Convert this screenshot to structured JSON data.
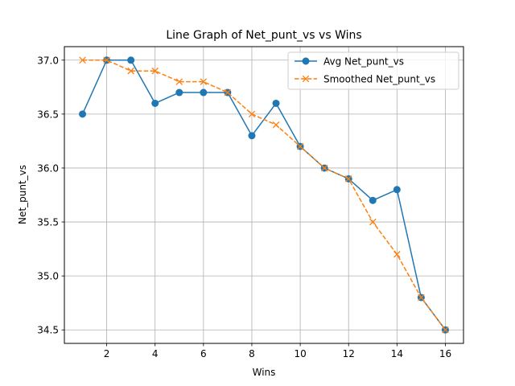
{
  "chart_data": {
    "type": "line",
    "title": "Line Graph of Net_punt_vs vs Wins",
    "xlabel": "Wins",
    "ylabel": "Net_punt_vs",
    "xlim": [
      0.25,
      16.75
    ],
    "ylim": [
      34.375,
      37.125
    ],
    "xticks": [
      2,
      4,
      6,
      8,
      10,
      12,
      14,
      16
    ],
    "yticks": [
      34.5,
      35.0,
      35.5,
      36.0,
      36.5,
      37.0
    ],
    "xtick_labels": [
      "2",
      "4",
      "6",
      "8",
      "10",
      "12",
      "14",
      "16"
    ],
    "ytick_labels": [
      "34.5",
      "35.0",
      "35.5",
      "36.0",
      "36.5",
      "37.0"
    ],
    "grid": true,
    "legend_position": "top-right",
    "x": [
      1,
      2,
      3,
      4,
      5,
      6,
      7,
      8,
      9,
      10,
      11,
      12,
      13,
      14,
      15,
      16
    ],
    "series": [
      {
        "name": "Avg Net_punt_vs",
        "color": "#1f77b4",
        "style": "solid",
        "marker": "circle",
        "values": [
          36.5,
          37.0,
          37.0,
          36.6,
          36.7,
          36.7,
          36.7,
          36.3,
          36.6,
          36.2,
          36.0,
          35.9,
          35.7,
          35.8,
          34.8,
          34.5
        ]
      },
      {
        "name": "Smoothed Net_punt_vs",
        "color": "#ff7f0e",
        "style": "dashed",
        "marker": "x",
        "values": [
          37.0,
          37.0,
          36.9,
          36.9,
          36.8,
          36.8,
          36.7,
          36.5,
          36.4,
          36.2,
          36.0,
          35.9,
          35.5,
          35.2,
          34.8,
          34.5
        ]
      }
    ]
  }
}
